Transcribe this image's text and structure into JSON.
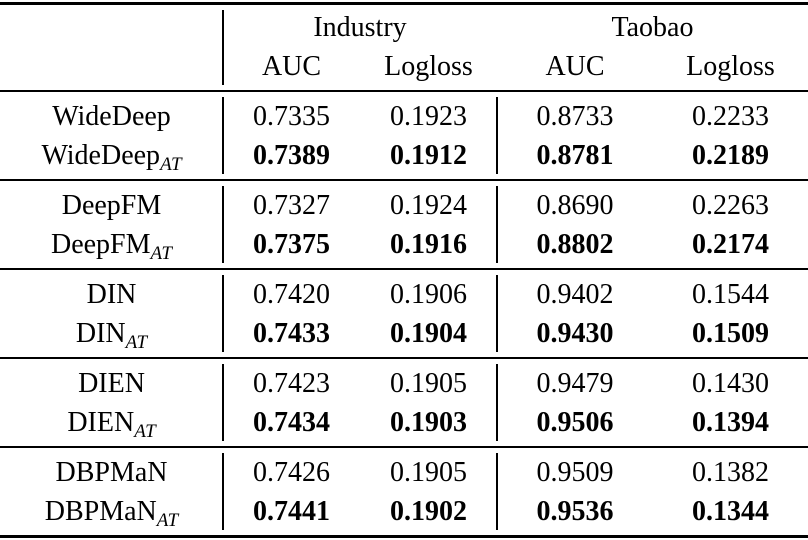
{
  "table": {
    "column_groups": [
      {
        "label": "Industry",
        "columns": [
          "AUC",
          "Logloss"
        ]
      },
      {
        "label": "Taobao",
        "columns": [
          "AUC",
          "Logloss"
        ]
      }
    ],
    "groups": [
      {
        "rows": [
          {
            "model": "WideDeep",
            "subscript": "",
            "bold": false,
            "values": [
              "0.7335",
              "0.1923",
              "0.8733",
              "0.2233"
            ]
          },
          {
            "model": "WideDeep",
            "subscript": "AT",
            "bold": true,
            "values": [
              "0.7389",
              "0.1912",
              "0.8781",
              "0.2189"
            ]
          }
        ]
      },
      {
        "rows": [
          {
            "model": "DeepFM",
            "subscript": "",
            "bold": false,
            "values": [
              "0.7327",
              "0.1924",
              "0.8690",
              "0.2263"
            ]
          },
          {
            "model": "DeepFM",
            "subscript": "AT",
            "bold": true,
            "values": [
              "0.7375",
              "0.1916",
              "0.8802",
              "0.2174"
            ]
          }
        ]
      },
      {
        "rows": [
          {
            "model": "DIN",
            "subscript": "",
            "bold": false,
            "values": [
              "0.7420",
              "0.1906",
              "0.9402",
              "0.1544"
            ]
          },
          {
            "model": "DIN",
            "subscript": "AT",
            "bold": true,
            "values": [
              "0.7433",
              "0.1904",
              "0.9430",
              "0.1509"
            ]
          }
        ]
      },
      {
        "rows": [
          {
            "model": "DIEN",
            "subscript": "",
            "bold": false,
            "values": [
              "0.7423",
              "0.1905",
              "0.9479",
              "0.1430"
            ]
          },
          {
            "model": "DIEN",
            "subscript": "AT",
            "bold": true,
            "values": [
              "0.7434",
              "0.1903",
              "0.9506",
              "0.1394"
            ]
          }
        ]
      },
      {
        "rows": [
          {
            "model": "DBPMaN",
            "subscript": "",
            "bold": false,
            "values": [
              "0.7426",
              "0.1905",
              "0.9509",
              "0.1382"
            ]
          },
          {
            "model": "DBPMaN",
            "subscript": "AT",
            "bold": true,
            "values": [
              "0.7441",
              "0.1902",
              "0.9536",
              "0.1344"
            ]
          }
        ]
      }
    ],
    "colors": {
      "text": "#000000",
      "background": "#ffffff",
      "rule": "#000000"
    }
  },
  "chart_data": {
    "type": "table",
    "title": "",
    "column_headers": [
      "",
      "Industry AUC",
      "Industry Logloss",
      "Taobao AUC",
      "Taobao Logloss"
    ],
    "rows": [
      [
        "WideDeep",
        "0.7335",
        "0.1923",
        "0.8733",
        "0.2233"
      ],
      [
        "WideDeep_AT",
        "0.7389",
        "0.1912",
        "0.8781",
        "0.2189"
      ],
      [
        "DeepFM",
        "0.7327",
        "0.1924",
        "0.8690",
        "0.2263"
      ],
      [
        "DeepFM_AT",
        "0.7375",
        "0.1916",
        "0.8802",
        "0.2174"
      ],
      [
        "DIN",
        "0.7420",
        "0.1906",
        "0.9402",
        "0.1544"
      ],
      [
        "DIN_AT",
        "0.7433",
        "0.1904",
        "0.9430",
        "0.1509"
      ],
      [
        "DIEN",
        "0.7423",
        "0.1905",
        "0.9479",
        "0.1430"
      ],
      [
        "DIEN_AT",
        "0.7434",
        "0.1903",
        "0.9506",
        "0.1394"
      ],
      [
        "DBPMaN",
        "0.7426",
        "0.1905",
        "0.9509",
        "0.1382"
      ],
      [
        "DBPMaN_AT",
        "0.7441",
        "0.1902",
        "0.9536",
        "0.1344"
      ]
    ],
    "bold_rows": [
      1,
      3,
      5,
      7,
      9
    ]
  }
}
